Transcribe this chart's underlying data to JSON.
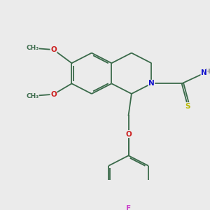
{
  "bg_color": "#ebebeb",
  "bond_color": "#3a6a4a",
  "bond_lw": 1.3,
  "atom_colors": {
    "N": "#1010cc",
    "O": "#cc2020",
    "S": "#b8b800",
    "F": "#cc44cc",
    "H": "#888888",
    "C": "#3a6a4a"
  },
  "font_size": 7.5,
  "figsize": [
    3.0,
    3.0
  ],
  "dpi": 100
}
